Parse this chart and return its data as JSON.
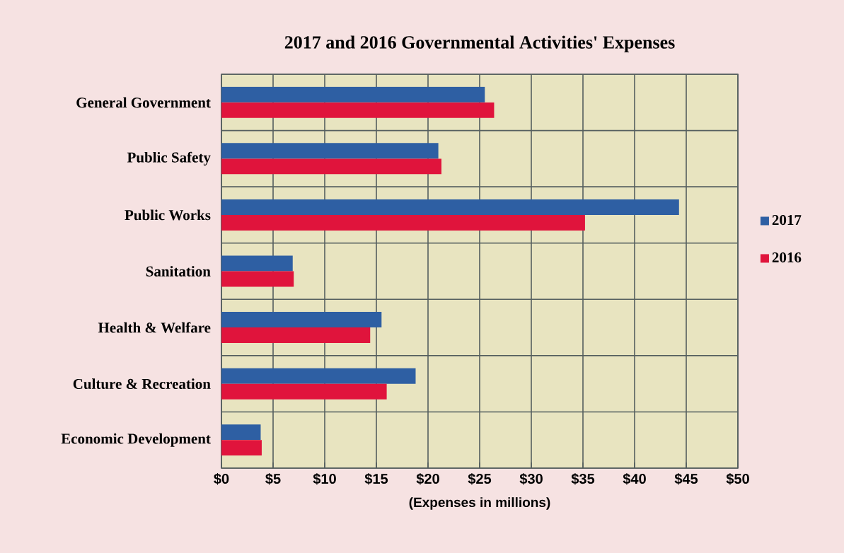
{
  "chart_data": {
    "type": "bar",
    "orientation": "horizontal",
    "title": "2017 and 2016 Governmental Activities' Expenses",
    "xlabel": "(Expenses in millions)",
    "categories": [
      "General Government",
      "Public Safety",
      "Public Works",
      "Sanitation",
      "Health & Welfare",
      "Culture & Recreation",
      "Economic Development"
    ],
    "series": [
      {
        "name": "2017",
        "color": "#2e5fa3",
        "values": [
          25.5,
          21.0,
          44.3,
          6.9,
          15.5,
          18.8,
          3.8
        ]
      },
      {
        "name": "2016",
        "color": "#e0143c",
        "values": [
          26.4,
          21.3,
          35.2,
          7.0,
          14.4,
          16.0,
          3.9
        ]
      }
    ],
    "xlim": [
      0,
      50
    ],
    "xticks": [
      {
        "value": 0,
        "label": "$0"
      },
      {
        "value": 5,
        "label": "$5"
      },
      {
        "value": 10,
        "label": "$10"
      },
      {
        "value": 15,
        "label": "$15"
      },
      {
        "value": 20,
        "label": "$20"
      },
      {
        "value": 25,
        "label": "$25"
      },
      {
        "value": 30,
        "label": "$30"
      },
      {
        "value": 35,
        "label": "$35"
      },
      {
        "value": 40,
        "label": "$40"
      },
      {
        "value": 45,
        "label": "$45"
      },
      {
        "value": 50,
        "label": "$50"
      }
    ],
    "grid": true,
    "legend": "right"
  }
}
